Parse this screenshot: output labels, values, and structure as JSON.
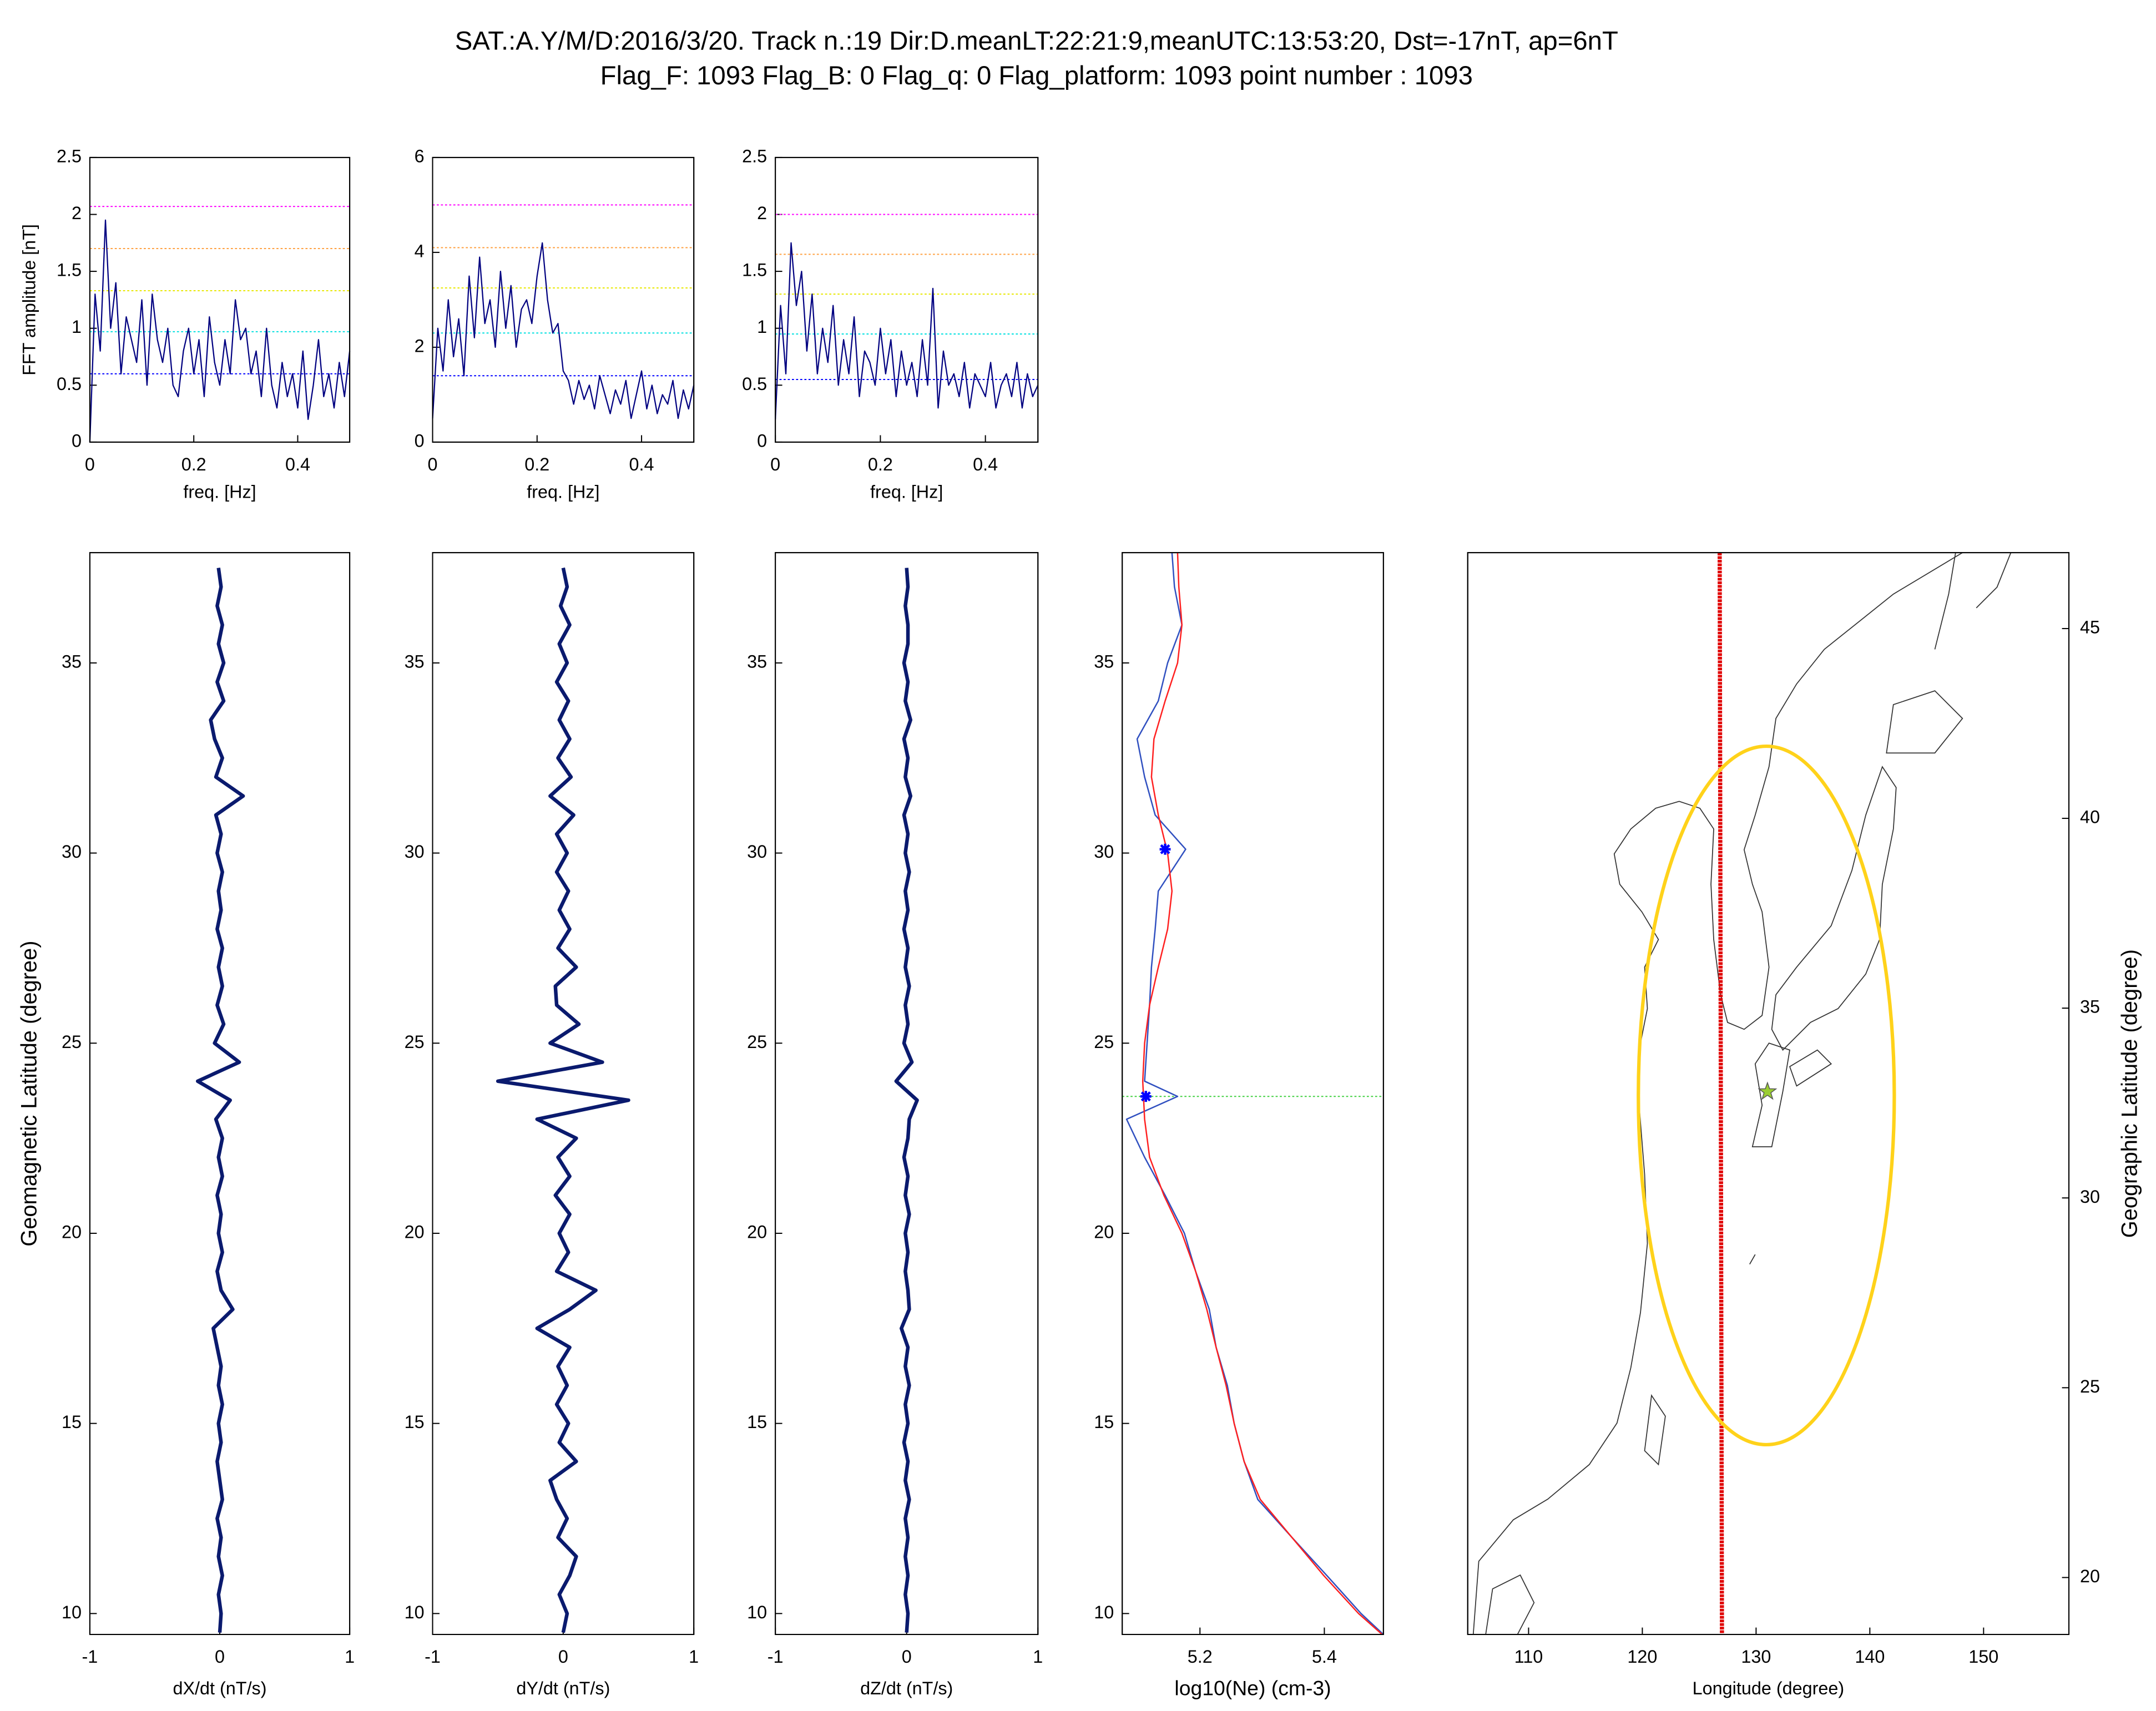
{
  "title": "SAT.:A.Y/M/D:2016/3/20. Track n.:19 Dir:D.meanLT:22:21:9,meanUTC:13:53:20, Dst=-17nT, ap=6nT",
  "subtitle": "Flag_F: 1093 Flag_B: 0 Flag_q: 0 Flag_platform: 1093 point number : 1093",
  "chart_data": [
    {
      "type": "line",
      "color": "#000080",
      "x": [
        0,
        0.01,
        0.02,
        0.03,
        0.04,
        0.05,
        0.06,
        0.07,
        0.08,
        0.09,
        0.1,
        0.11,
        0.12,
        0.13,
        0.14,
        0.15,
        0.16,
        0.17,
        0.18,
        0.19,
        0.2,
        0.21,
        0.22,
        0.23,
        0.24,
        0.25,
        0.26,
        0.27,
        0.28,
        0.29,
        0.3,
        0.31,
        0.32,
        0.33,
        0.34,
        0.35,
        0.36,
        0.37,
        0.38,
        0.39,
        0.4,
        0.41,
        0.42,
        0.43,
        0.44,
        0.45,
        0.46,
        0.47,
        0.48,
        0.49,
        0.5
      ],
      "values": [
        0,
        1.3,
        0.8,
        1.95,
        1.0,
        1.4,
        0.6,
        1.1,
        0.9,
        0.7,
        1.25,
        0.5,
        1.3,
        0.9,
        0.7,
        1.0,
        0.5,
        0.4,
        0.8,
        1.0,
        0.6,
        0.9,
        0.4,
        1.1,
        0.7,
        0.5,
        0.9,
        0.6,
        1.25,
        0.9,
        1.0,
        0.6,
        0.8,
        0.4,
        1.0,
        0.5,
        0.3,
        0.7,
        0.4,
        0.6,
        0.3,
        0.8,
        0.2,
        0.5,
        0.9,
        0.4,
        0.6,
        0.3,
        0.7,
        0.4,
        0.8
      ],
      "xlim": [
        0,
        0.5
      ],
      "xticks": [
        0,
        0.2,
        0.4
      ],
      "ylim": [
        0,
        2.5
      ],
      "yticks": [
        0,
        0.5,
        1,
        1.5,
        2,
        2.5
      ],
      "xlabel": "freq. [Hz]",
      "ylabel": "FFT amplitude [nT]",
      "hlines": [
        {
          "value": 2.07,
          "color": "#ff00ff"
        },
        {
          "value": 1.7,
          "color": "#ffa040"
        },
        {
          "value": 1.33,
          "color": "#e8e800"
        },
        {
          "value": 0.97,
          "color": "#00e0e0"
        },
        {
          "value": 0.6,
          "color": "#0000ff"
        }
      ]
    },
    {
      "type": "line",
      "color": "#000080",
      "x": [
        0,
        0.01,
        0.02,
        0.03,
        0.04,
        0.05,
        0.06,
        0.07,
        0.08,
        0.09,
        0.1,
        0.11,
        0.12,
        0.13,
        0.14,
        0.15,
        0.16,
        0.17,
        0.18,
        0.19,
        0.2,
        0.21,
        0.22,
        0.23,
        0.24,
        0.25,
        0.26,
        0.27,
        0.28,
        0.29,
        0.3,
        0.31,
        0.32,
        0.33,
        0.34,
        0.35,
        0.36,
        0.37,
        0.38,
        0.39,
        0.4,
        0.41,
        0.42,
        0.43,
        0.44,
        0.45,
        0.46,
        0.47,
        0.48,
        0.49,
        0.5
      ],
      "values": [
        0.5,
        2.4,
        1.5,
        3.0,
        1.8,
        2.6,
        1.4,
        3.5,
        2.2,
        3.9,
        2.5,
        3.0,
        2.0,
        3.6,
        2.4,
        3.3,
        2.0,
        2.8,
        3.0,
        2.5,
        3.5,
        4.2,
        3.0,
        2.3,
        2.5,
        1.5,
        1.3,
        0.8,
        1.3,
        0.9,
        1.2,
        0.7,
        1.4,
        1.0,
        0.6,
        1.1,
        0.8,
        1.3,
        0.5,
        1.0,
        1.5,
        0.7,
        1.2,
        0.6,
        1.0,
        0.8,
        1.3,
        0.5,
        1.1,
        0.7,
        1.2
      ],
      "xlim": [
        0,
        0.5
      ],
      "xticks": [
        0,
        0.2,
        0.4
      ],
      "ylim": [
        0,
        6
      ],
      "yticks": [
        0,
        2,
        4,
        6
      ],
      "xlabel": "freq. [Hz]",
      "hlines": [
        {
          "value": 5.0,
          "color": "#ff00ff"
        },
        {
          "value": 4.1,
          "color": "#ffa040"
        },
        {
          "value": 3.25,
          "color": "#e8e800"
        },
        {
          "value": 2.3,
          "color": "#00e0e0"
        },
        {
          "value": 1.4,
          "color": "#0000ff"
        }
      ]
    },
    {
      "type": "line",
      "color": "#000080",
      "x": [
        0,
        0.01,
        0.02,
        0.03,
        0.04,
        0.05,
        0.06,
        0.07,
        0.08,
        0.09,
        0.1,
        0.11,
        0.12,
        0.13,
        0.14,
        0.15,
        0.16,
        0.17,
        0.18,
        0.19,
        0.2,
        0.21,
        0.22,
        0.23,
        0.24,
        0.25,
        0.26,
        0.27,
        0.28,
        0.29,
        0.3,
        0.31,
        0.32,
        0.33,
        0.34,
        0.35,
        0.36,
        0.37,
        0.38,
        0.39,
        0.4,
        0.41,
        0.42,
        0.43,
        0.44,
        0.45,
        0.46,
        0.47,
        0.48,
        0.49,
        0.5
      ],
      "values": [
        0.2,
        1.2,
        0.6,
        1.75,
        1.2,
        1.5,
        0.8,
        1.3,
        0.6,
        1.0,
        0.7,
        1.2,
        0.5,
        0.9,
        0.6,
        1.1,
        0.4,
        0.8,
        0.7,
        0.5,
        1.0,
        0.6,
        0.9,
        0.4,
        0.8,
        0.5,
        0.7,
        0.4,
        0.9,
        0.5,
        1.35,
        0.3,
        0.8,
        0.5,
        0.6,
        0.4,
        0.7,
        0.3,
        0.6,
        0.5,
        0.4,
        0.7,
        0.3,
        0.5,
        0.6,
        0.4,
        0.7,
        0.3,
        0.6,
        0.4,
        0.5
      ],
      "xlim": [
        0,
        0.5
      ],
      "xticks": [
        0,
        0.2,
        0.4
      ],
      "ylim": [
        0,
        2.5
      ],
      "yticks": [
        0,
        0.5,
        1,
        1.5,
        2,
        2.5
      ],
      "xlabel": "freq. [Hz]",
      "hlines": [
        {
          "value": 2.0,
          "color": "#ff00ff"
        },
        {
          "value": 1.65,
          "color": "#ffa040"
        },
        {
          "value": 1.3,
          "color": "#e8e800"
        },
        {
          "value": 0.95,
          "color": "#00e0e0"
        },
        {
          "value": 0.55,
          "color": "#0000ff"
        }
      ]
    },
    {
      "type": "profile",
      "color": "#0a1a6e",
      "y": [
        9.5,
        10,
        10.5,
        11,
        11.5,
        12,
        12.5,
        13,
        13.5,
        14,
        14.5,
        15,
        15.5,
        16,
        16.5,
        17,
        17.5,
        18,
        18.5,
        19,
        19.5,
        20,
        20.5,
        21,
        21.5,
        22,
        22.5,
        23,
        23.5,
        24,
        24.5,
        25,
        25.5,
        26,
        26.5,
        27,
        27.5,
        28,
        28.5,
        29,
        29.5,
        30,
        30.5,
        31,
        31.5,
        32,
        32.5,
        33,
        33.5,
        34,
        34.5,
        35,
        35.5,
        36,
        36.5,
        37,
        37.5
      ],
      "values": [
        0,
        0.01,
        -0.01,
        0.02,
        -0.01,
        0.01,
        -0.02,
        0.02,
        0,
        -0.02,
        0.01,
        -0.01,
        0.02,
        -0.01,
        0.01,
        -0.02,
        -0.05,
        0.1,
        0.01,
        -0.02,
        0.02,
        -0.01,
        0.01,
        -0.02,
        0.02,
        -0.01,
        0.02,
        -0.03,
        0.08,
        -0.17,
        0.15,
        -0.04,
        0.03,
        -0.02,
        0.02,
        -0.01,
        0.02,
        -0.02,
        0.01,
        -0.01,
        0.02,
        -0.02,
        0.01,
        -0.03,
        0.18,
        -0.03,
        0.02,
        -0.04,
        -0.07,
        0.03,
        -0.02,
        0.03,
        -0.01,
        0.02,
        -0.02,
        0.01,
        -0.01
      ],
      "xlim": [
        -1,
        1
      ],
      "xticks": [
        -1,
        0,
        1
      ],
      "ylim": [
        9.45,
        37.9
      ],
      "yticks": [
        10,
        15,
        20,
        25,
        30,
        35
      ],
      "xlabel": "dX/dt (nT/s)",
      "ylabel": "Geomagnetic Latitude (degree)"
    },
    {
      "type": "profile",
      "color": "#0a1a6e",
      "y": [
        9.5,
        10,
        10.5,
        11,
        11.5,
        12,
        12.5,
        13,
        13.5,
        14,
        14.5,
        15,
        15.5,
        16,
        16.5,
        17,
        17.5,
        18,
        18.5,
        19,
        19.5,
        20,
        20.5,
        21,
        21.5,
        22,
        22.5,
        23,
        23.5,
        24,
        24.5,
        25,
        25.5,
        26,
        26.5,
        27,
        27.5,
        28,
        28.5,
        29,
        29.5,
        30,
        30.5,
        31,
        31.5,
        32,
        32.5,
        33,
        33.5,
        34,
        34.5,
        35,
        35.5,
        36,
        36.5,
        37,
        37.5
      ],
      "values": [
        0,
        0.03,
        -0.03,
        0.05,
        0.1,
        -0.04,
        0.03,
        -0.05,
        -0.1,
        0.1,
        -0.03,
        0.04,
        -0.05,
        0.03,
        -0.04,
        0.05,
        -0.2,
        0.05,
        0.25,
        -0.05,
        0.04,
        -0.03,
        0.05,
        -0.06,
        0.05,
        -0.04,
        0.1,
        -0.2,
        0.5,
        -0.5,
        0.3,
        -0.1,
        0.12,
        -0.05,
        -0.06,
        0.1,
        -0.04,
        0.05,
        -0.03,
        0.04,
        -0.05,
        0.03,
        -0.05,
        0.08,
        -0.1,
        0.06,
        -0.04,
        0.05,
        -0.03,
        0.04,
        -0.05,
        0.03,
        -0.03,
        0.05,
        -0.02,
        0.03,
        0
      ],
      "xlim": [
        -1,
        1
      ],
      "xticks": [
        -1,
        0,
        1
      ],
      "ylim": [
        9.45,
        37.9
      ],
      "yticks": [
        10,
        15,
        20,
        25,
        30,
        35
      ],
      "xlabel": "dY/dt (nT/s)"
    },
    {
      "type": "profile",
      "color": "#0a1a6e",
      "y": [
        9.5,
        10,
        10.5,
        11,
        11.5,
        12,
        12.5,
        13,
        13.5,
        14,
        14.5,
        15,
        15.5,
        16,
        16.5,
        17,
        17.5,
        18,
        18.5,
        19,
        19.5,
        20,
        20.5,
        21,
        21.5,
        22,
        22.5,
        23,
        23.5,
        24,
        24.5,
        25,
        25.5,
        26,
        26.5,
        27,
        27.5,
        28,
        28.5,
        29,
        29.5,
        30,
        30.5,
        31,
        31.5,
        32,
        32.5,
        33,
        33.5,
        34,
        34.5,
        35,
        35.5,
        36,
        36.5,
        37,
        37.5
      ],
      "values": [
        0,
        0.01,
        -0.01,
        0.01,
        -0.01,
        0.01,
        -0.01,
        0.02,
        -0.01,
        0.01,
        -0.02,
        0.01,
        -0.01,
        0.02,
        -0.01,
        0.01,
        -0.04,
        0.02,
        0.01,
        -0.01,
        0.01,
        -0.01,
        0.02,
        -0.01,
        0.01,
        -0.02,
        0.01,
        0.02,
        0.08,
        -0.08,
        0.04,
        -0.02,
        0.01,
        -0.01,
        0.02,
        -0.01,
        0.01,
        -0.02,
        0.01,
        -0.01,
        0.02,
        -0.01,
        0.01,
        -0.02,
        0.03,
        -0.01,
        0.01,
        -0.02,
        0.03,
        -0.01,
        0.01,
        -0.02,
        0.01,
        0.01,
        -0.01,
        0.01,
        0
      ],
      "xlim": [
        -1,
        1
      ],
      "xticks": [
        -1,
        0,
        1
      ],
      "ylim": [
        9.45,
        37.9
      ],
      "yticks": [
        10,
        15,
        20,
        25,
        30,
        35
      ],
      "xlabel": "dZ/dt (nT/s)"
    },
    {
      "type": "profile",
      "series": [
        {
          "color": "#3050c0",
          "y": [
            9.45,
            10,
            11,
            12,
            13,
            14,
            15,
            16,
            17,
            18,
            19,
            20,
            21,
            22,
            23,
            23.6,
            24,
            25,
            26,
            27,
            28,
            29,
            30.1,
            31,
            32,
            33,
            34,
            35,
            36,
            37,
            37.9
          ],
          "values": [
            5.495,
            5.459,
            5.404,
            5.348,
            5.293,
            5.271,
            5.255,
            5.244,
            5.226,
            5.215,
            5.193,
            5.175,
            5.144,
            5.111,
            5.082,
            5.164,
            5.111,
            5.115,
            5.119,
            5.122,
            5.128,
            5.133,
            5.177,
            5.128,
            5.111,
            5.099,
            5.133,
            5.148,
            5.171,
            5.159,
            5.155
          ]
        },
        {
          "color": "#ff2020",
          "y": [
            9.45,
            10,
            11,
            12,
            13,
            14,
            15,
            16,
            17,
            18,
            19,
            20,
            21,
            22,
            23,
            24,
            25,
            26,
            27,
            28,
            29,
            30,
            31,
            32,
            33,
            34,
            35,
            36,
            37,
            37.9
          ],
          "values": [
            5.493,
            5.455,
            5.399,
            5.348,
            5.297,
            5.271,
            5.255,
            5.242,
            5.226,
            5.211,
            5.193,
            5.171,
            5.142,
            5.119,
            5.111,
            5.108,
            5.111,
            5.119,
            5.133,
            5.148,
            5.155,
            5.148,
            5.133,
            5.122,
            5.126,
            5.144,
            5.164,
            5.171,
            5.166,
            5.164
          ]
        }
      ],
      "points": {
        "x": [
          5.144,
          5.113
        ],
        "y": [
          30.1,
          23.6
        ],
        "color": "#0000ff"
      },
      "hlines": [
        {
          "value": 23.6,
          "color": "#40d040"
        }
      ],
      "xlim": [
        5.075,
        5.495
      ],
      "xticks": [
        5.2,
        5.4
      ],
      "ylim": [
        9.45,
        37.9
      ],
      "yticks": [
        10,
        15,
        20,
        25,
        30,
        35
      ],
      "xlabel": "log10(Ne) (cm-3)"
    },
    {
      "type": "map",
      "xlim": [
        104.65,
        157.5
      ],
      "xticks": [
        110,
        120,
        130,
        140,
        150
      ],
      "ylim": [
        18.5,
        47
      ],
      "yticks": [
        20,
        25,
        30,
        35,
        40,
        45
      ],
      "y_axis_side": "right",
      "xlabel": "Longitude (degree)",
      "ylabel": "Geographic Latitude (degree)",
      "track": {
        "lon": [
          126.8,
          127.0
        ],
        "lat": [
          47,
          18.5
        ],
        "color": "#e00000"
      },
      "circle": {
        "lon": 130.9,
        "lat": 32.7,
        "lon_radius": 11.25,
        "lat_radius": 9.2,
        "color": "#ffd21a"
      },
      "epicenter": {
        "lon": 131.0,
        "lat": 32.8,
        "color": "#9acd32"
      }
    }
  ]
}
